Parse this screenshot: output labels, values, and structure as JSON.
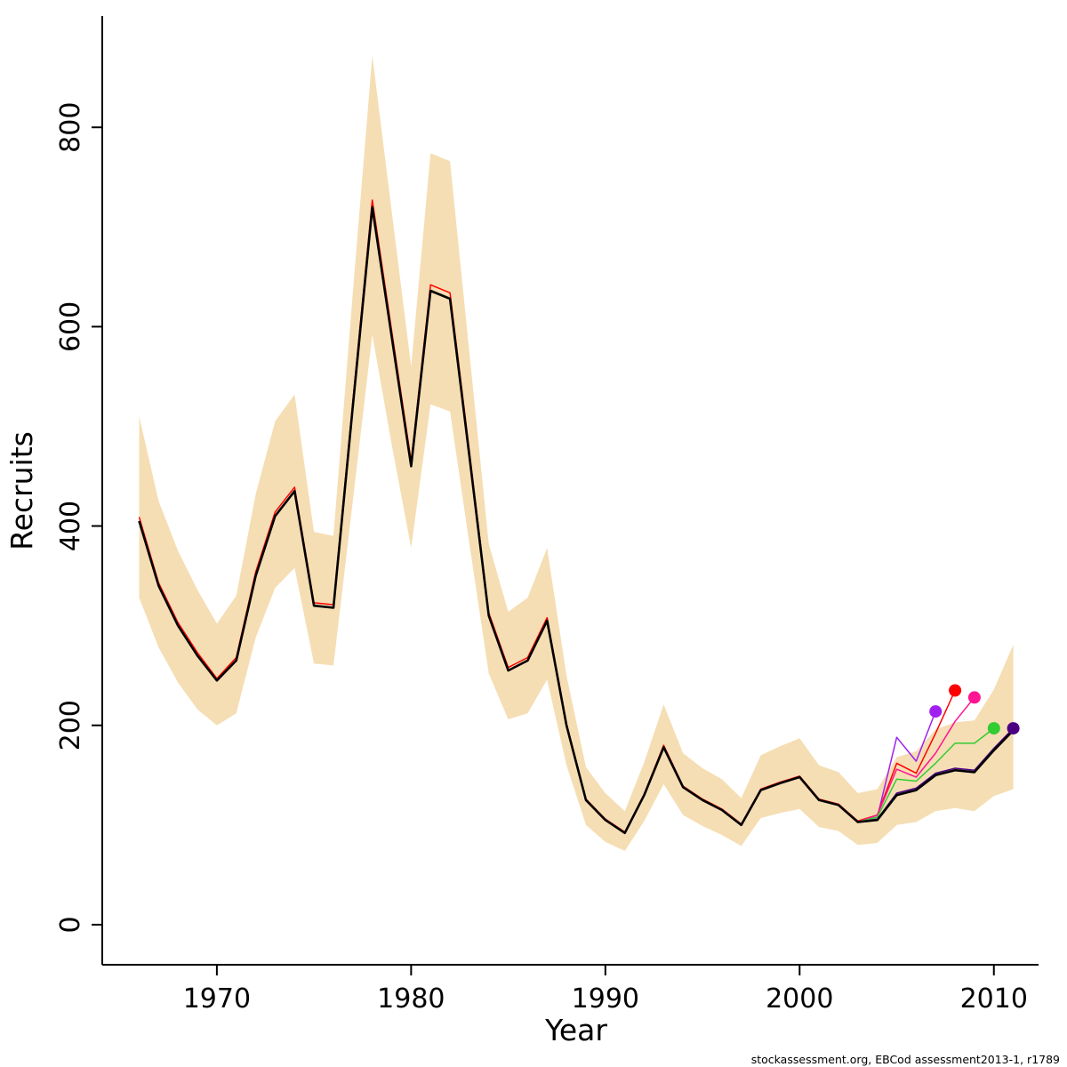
{
  "caption": "stockassessment.org, EBCod assessment2013-1, r1789",
  "chart_data": {
    "type": "line",
    "title": "",
    "xlabel": "Year",
    "ylabel": "Recruits",
    "legend_position": "none",
    "grid": false,
    "xlim": [
      1964.1,
      2012.3
    ],
    "ylim": [
      -40.2,
      911.7
    ],
    "x_ticks": [
      1970,
      1980,
      1990,
      2000,
      2010
    ],
    "y_ticks": [
      0,
      200,
      400,
      600,
      800
    ],
    "years": [
      1966,
      1967,
      1968,
      1969,
      1970,
      1971,
      1972,
      1973,
      1974,
      1975,
      1976,
      1977,
      1978,
      1979,
      1980,
      1981,
      1982,
      1983,
      1984,
      1985,
      1986,
      1987,
      1988,
      1989,
      1990,
      1991,
      1992,
      1993,
      1994,
      1995,
      1996,
      1997,
      1998,
      1999,
      2000,
      2001,
      2002,
      2003,
      2004,
      2005,
      2006,
      2007,
      2008,
      2009,
      2010,
      2011
    ],
    "band": {
      "name": "confidence-band",
      "color": "#F5DEB3",
      "lower": [
        328,
        278,
        243,
        216,
        200,
        212,
        288,
        338,
        358,
        262,
        260,
        425,
        592,
        482,
        378,
        522,
        515,
        382,
        252,
        206,
        212,
        246,
        160,
        100,
        83,
        74,
        104,
        141,
        110,
        99,
        90,
        79,
        107,
        112,
        116,
        98,
        94,
        80,
        82,
        100,
        103,
        114,
        117,
        114,
        129,
        136
      ],
      "upper": [
        510,
        425,
        375,
        336,
        302,
        330,
        432,
        505,
        532,
        394,
        390,
        634,
        872,
        716,
        560,
        774,
        766,
        574,
        382,
        314,
        328,
        378,
        250,
        158,
        132,
        114,
        163,
        221,
        172,
        157,
        146,
        127,
        170,
        179,
        187,
        160,
        153,
        132,
        136,
        168,
        174,
        196,
        203,
        205,
        236,
        281
      ]
    },
    "series": [
      {
        "name": "retro-2007",
        "color": "#A020F0",
        "width": 1.5,
        "end_dot": true,
        "values": [
          405,
          340,
          300,
          270,
          245,
          265,
          350,
          410,
          435,
          320,
          318,
          520,
          720,
          590,
          460,
          636,
          628,
          470,
          310,
          255,
          265,
          305,
          200,
          125,
          105,
          92,
          130,
          178,
          138,
          125,
          115,
          100,
          135,
          142,
          148,
          125,
          120,
          103,
          108,
          188,
          164,
          214,
          null,
          null,
          null,
          null
        ]
      },
      {
        "name": "retro-2008",
        "color": "#FF0000",
        "width": 1.5,
        "end_dot": true,
        "values": [
          409,
          343,
          303,
          273,
          247,
          268,
          354,
          414,
          439,
          323,
          321,
          525,
          727,
          596,
          465,
          642,
          634,
          475,
          313,
          258,
          268,
          308,
          202,
          126,
          106,
          93,
          131,
          180,
          139,
          126,
          116,
          101,
          136,
          143,
          149,
          126,
          121,
          104,
          110,
          162,
          152,
          192,
          235,
          null,
          null,
          null
        ]
      },
      {
        "name": "retro-2009",
        "color": "#FF1493",
        "width": 1.5,
        "end_dot": true,
        "values": [
          405,
          340,
          300,
          270,
          245,
          265,
          350,
          410,
          435,
          320,
          318,
          520,
          720,
          590,
          460,
          636,
          628,
          470,
          310,
          255,
          265,
          305,
          200,
          125,
          105,
          92,
          130,
          178,
          138,
          125,
          115,
          100,
          135,
          142,
          148,
          125,
          120,
          103,
          110,
          156,
          148,
          172,
          204,
          228,
          null,
          null
        ]
      },
      {
        "name": "retro-2010",
        "color": "#33CC33",
        "width": 1.5,
        "end_dot": true,
        "values": [
          405,
          340,
          300,
          270,
          245,
          265,
          350,
          410,
          435,
          320,
          318,
          520,
          720,
          590,
          460,
          636,
          628,
          470,
          310,
          255,
          265,
          305,
          200,
          125,
          105,
          92,
          130,
          178,
          138,
          125,
          115,
          100,
          135,
          142,
          148,
          125,
          120,
          103,
          108,
          146,
          144,
          162,
          182,
          182,
          197,
          null
        ]
      },
      {
        "name": "retro-2011",
        "color": "#4B0082",
        "width": 1.5,
        "end_dot": true,
        "values": [
          405,
          340,
          300,
          270,
          245,
          265,
          350,
          410,
          435,
          320,
          318,
          520,
          720,
          590,
          460,
          636,
          628,
          470,
          310,
          255,
          265,
          305,
          200,
          125,
          105,
          92,
          130,
          178,
          138,
          125,
          115,
          100,
          135,
          142,
          148,
          125,
          120,
          103,
          106,
          132,
          137,
          152,
          157,
          155,
          177,
          197
        ]
      },
      {
        "name": "base-run",
        "color": "#000000",
        "width": 2.6,
        "end_dot": false,
        "values": [
          405,
          340,
          300,
          270,
          245,
          265,
          350,
          410,
          435,
          320,
          318,
          520,
          720,
          590,
          460,
          636,
          628,
          470,
          310,
          255,
          265,
          305,
          200,
          125,
          105,
          92,
          130,
          178,
          138,
          125,
          115,
          100,
          135,
          142,
          148,
          125,
          120,
          103,
          105,
          130,
          135,
          150,
          155,
          153,
          175,
          195
        ]
      }
    ]
  }
}
